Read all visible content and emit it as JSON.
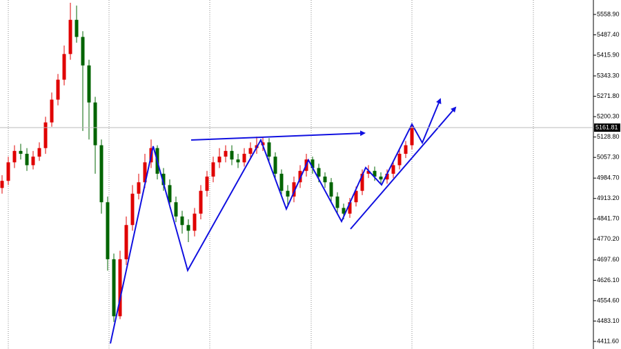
{
  "chart_data": {
    "type": "candlestick",
    "ylim": [
      4385,
      5609.6
    ],
    "yticks": [
      {
        "value": 5558.9,
        "label": "5558.90"
      },
      {
        "value": 5487.4,
        "label": "5487.40"
      },
      {
        "value": 5415.9,
        "label": "5415.90"
      },
      {
        "value": 5343.3,
        "label": "5343.30"
      },
      {
        "value": 5271.8,
        "label": "5271.80"
      },
      {
        "value": 5200.3,
        "label": "5200.30"
      },
      {
        "value": 5128.8,
        "label": "5128.80"
      },
      {
        "value": 5057.3,
        "label": "5057.30"
      },
      {
        "value": 4984.7,
        "label": "4984.70"
      },
      {
        "value": 4913.2,
        "label": "4913.20"
      },
      {
        "value": 4841.7,
        "label": "4841.70"
      },
      {
        "value": 4770.2,
        "label": "4770.20"
      },
      {
        "value": 4697.6,
        "label": "4697.60"
      },
      {
        "value": 4626.1,
        "label": "4626.10"
      },
      {
        "value": 4554.6,
        "label": "4554.60"
      },
      {
        "value": 4483.1,
        "label": "4483.10"
      },
      {
        "value": 4411.6,
        "label": "4411.60"
      }
    ],
    "last_price": 5161.81,
    "up_color": "#e00000",
    "down_color": "#006400",
    "open": [
      4950,
      4975,
      5040,
      5080,
      5070,
      5030,
      5060,
      5090,
      5180,
      5260,
      5330,
      5420,
      5540,
      5480,
      5380,
      5250,
      5100,
      4900,
      4700,
      4500,
      4700,
      4820,
      4930,
      4970,
      5040,
      5090,
      5000,
      4960,
      4900,
      4850,
      4820,
      4800,
      4860,
      4940,
      4990,
      5040,
      5060,
      5080,
      5050,
      5040,
      5070,
      5090,
      5100,
      5110,
      5060,
      5000,
      4940,
      4920,
      4970,
      5010,
      5050,
      5020,
      4990,
      4970,
      4920,
      4880,
      4860,
      4900,
      4940,
      5000,
      5010,
      4990,
      4980,
      5000,
      5030,
      5070,
      5100
    ],
    "high": [
      4995,
      5060,
      5100,
      5105,
      5090,
      5080,
      5110,
      5200,
      5285,
      5350,
      5450,
      5600,
      5590,
      5500,
      5400,
      5270,
      5120,
      4920,
      4720,
      4730,
      4850,
      4960,
      5000,
      5070,
      5120,
      5100,
      5020,
      4980,
      4920,
      4870,
      4840,
      4880,
      4960,
      5010,
      5060,
      5090,
      5100,
      5100,
      5070,
      5090,
      5110,
      5130,
      5130,
      5125,
      5075,
      5015,
      4960,
      4990,
      5030,
      5070,
      5060,
      5035,
      5005,
      4985,
      4935,
      4895,
      4915,
      4955,
      5015,
      5030,
      5025,
      5005,
      5015,
      5045,
      5085,
      5115,
      5175
    ],
    "low": [
      4930,
      4960,
      5020,
      5050,
      5010,
      5015,
      5045,
      5070,
      5165,
      5240,
      5310,
      5400,
      5460,
      5150,
      5120,
      5000,
      4860,
      4660,
      4480,
      4490,
      4680,
      4800,
      4910,
      4950,
      5020,
      4980,
      4940,
      4880,
      4830,
      4790,
      4760,
      4780,
      4840,
      4920,
      4970,
      5020,
      5040,
      5030,
      5020,
      5025,
      5050,
      5070,
      5080,
      5040,
      4980,
      4920,
      4890,
      4900,
      4950,
      4990,
      5000,
      4970,
      4950,
      4900,
      4860,
      4840,
      4845,
      4885,
      4925,
      4985,
      4975,
      4965,
      4965,
      4985,
      5015,
      5055,
      5085
    ],
    "close": [
      4975,
      5040,
      5080,
      5070,
      5030,
      5060,
      5090,
      5180,
      5260,
      5330,
      5420,
      5540,
      5480,
      5380,
      5250,
      5100,
      4900,
      4700,
      4500,
      4700,
      4820,
      4930,
      4970,
      5040,
      5090,
      5000,
      4960,
      4900,
      4850,
      4820,
      4800,
      4860,
      4940,
      4990,
      5040,
      5060,
      5080,
      5050,
      5040,
      5070,
      5090,
      5100,
      5110,
      5060,
      5000,
      4940,
      4920,
      4970,
      5010,
      5050,
      5020,
      4990,
      4970,
      4920,
      4880,
      4860,
      4900,
      4940,
      5000,
      5010,
      4990,
      4980,
      5000,
      5030,
      5070,
      5100,
      5162
    ]
  }
}
